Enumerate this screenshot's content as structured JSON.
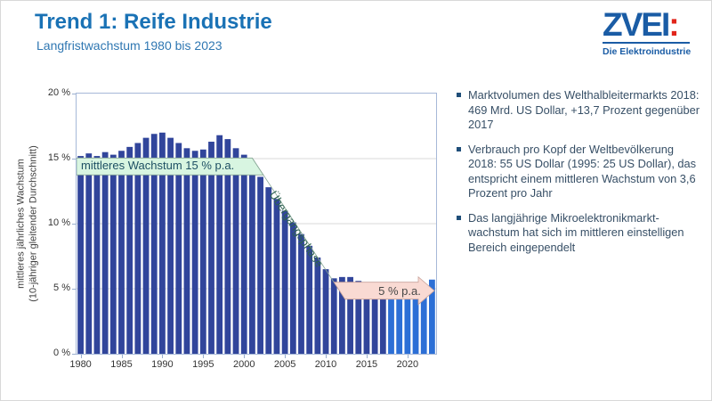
{
  "header": {
    "title": "Trend 1: Reife Industrie",
    "subtitle": "Langfristwachstum 1980 bis 2023"
  },
  "logo": {
    "wordmark": "ZVEI",
    "colon": ":",
    "tagline": "Die Elektroindustrie"
  },
  "chart_data": {
    "type": "bar",
    "ylabel_line1": "mittleres jährliches Wachstum",
    "ylabel_line2": "(10-jähriger gleitender Durchschnitt)",
    "ylim": [
      0,
      20
    ],
    "grid": true,
    "start_year": 1980,
    "end_year": 2023,
    "yticks": [
      {
        "value": 20,
        "label": "20 %"
      },
      {
        "value": 15,
        "label": "15 %"
      },
      {
        "value": 10,
        "label": "10 %"
      },
      {
        "value": 5,
        "label": "5 %"
      },
      {
        "value": 0,
        "label": "0 %"
      }
    ],
    "xticks": [
      1980,
      1985,
      1990,
      1995,
      2000,
      2005,
      2010,
      2015,
      2020
    ],
    "categories": [
      1980,
      1981,
      1982,
      1983,
      1984,
      1985,
      1986,
      1987,
      1988,
      1989,
      1990,
      1991,
      1992,
      1993,
      1994,
      1995,
      1996,
      1997,
      1998,
      1999,
      2000,
      2001,
      2002,
      2003,
      2004,
      2005,
      2006,
      2007,
      2008,
      2009,
      2010,
      2011,
      2012,
      2013,
      2014,
      2015,
      2016,
      2017,
      2018,
      2019,
      2020,
      2021,
      2022,
      2023
    ],
    "values": [
      15.2,
      15.4,
      15.2,
      15.5,
      15.3,
      15.6,
      15.9,
      16.2,
      16.6,
      16.9,
      17.0,
      16.6,
      16.2,
      15.8,
      15.6,
      15.7,
      16.3,
      16.8,
      16.5,
      15.8,
      15.3,
      14.4,
      13.6,
      12.8,
      11.9,
      11.0,
      10.1,
      9.2,
      8.3,
      7.4,
      6.5,
      5.8,
      5.9,
      5.9,
      5.6,
      5.5,
      5.4,
      5.4,
      5.3,
      5.2,
      5.2,
      5.1,
      5.1,
      5.7
    ],
    "forecast_start_year": 2018,
    "bar_color": "#31459b",
    "bar_color_forecast": "#2c6fd6",
    "annotations": {
      "band15": {
        "label": "mittleres Wachstum 15 % p.a.",
        "level": 15,
        "fill": "#d8f5e1",
        "stroke": "#88a796",
        "transition_start_year": 2001,
        "transition_end_year": 2011
      },
      "transition": {
        "label": "Übergangsphase"
      },
      "band5": {
        "label": "5 % p.a.",
        "level": 5,
        "fill": "#f9dad3",
        "stroke": "#c9a29a"
      }
    }
  },
  "bullets": [
    "Marktvolumen des Welthalbleitermarkts 2018: 469 Mrd. US Dollar, +13,7 Prozent gegenüber 2017",
    "Verbrauch pro Kopf der Weltbevölkerung 2018: 55 US Dollar (1995: 25 US Dollar), das entspricht einem mittleren Wachstum von 3,6 Prozent pro Jahr",
    "Das langjährige Mikroelektronikmarkt-wachstum hat sich im mittleren einstelligen Bereich eingependelt"
  ],
  "colors": {
    "title_blue": "#1a72b5",
    "logo_blue": "#1a5ca5",
    "logo_red": "#e1251b",
    "plot_border": "#a6b8d8",
    "gridline": "#d9d9d9",
    "bullet_text": "#374f66"
  }
}
